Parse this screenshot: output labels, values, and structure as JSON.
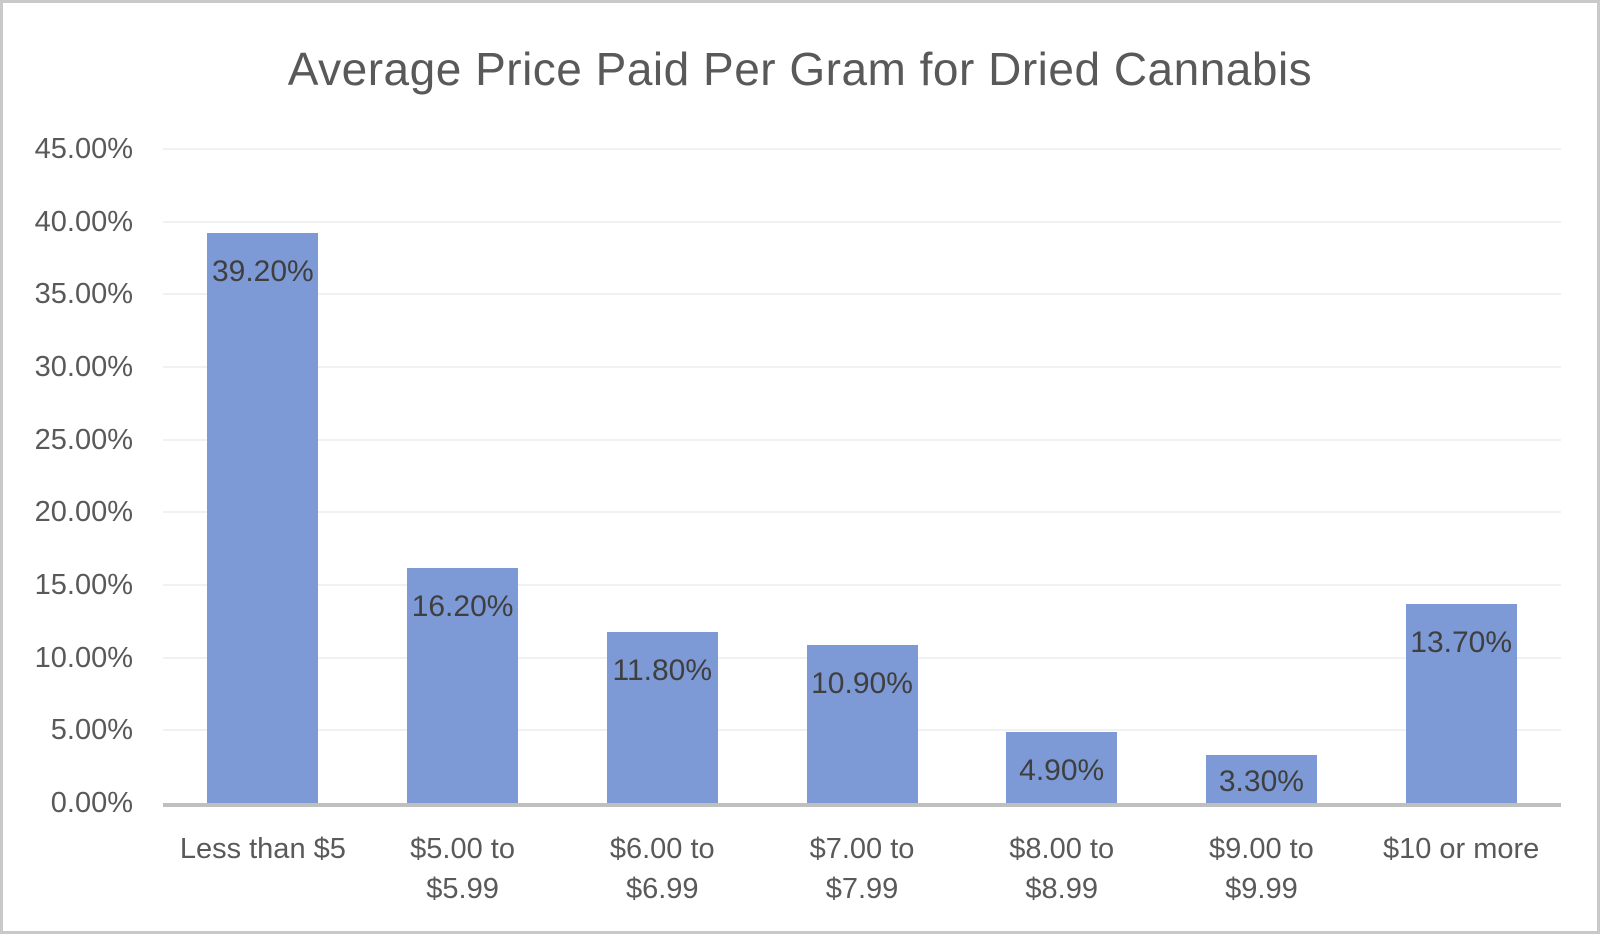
{
  "chart_data": {
    "type": "bar",
    "title": "Average Price Paid Per Gram for Dried Cannabis",
    "xlabel": "",
    "ylabel": "",
    "categories": [
      "Less than $5",
      "$5.00 to\n$5.99",
      "$6.00 to\n$6.99",
      "$7.00 to\n$7.99",
      "$8.00 to\n$8.99",
      "$9.00 to\n$9.99",
      "$10 or more"
    ],
    "values": [
      39.2,
      16.2,
      11.8,
      10.9,
      4.9,
      3.3,
      13.7
    ],
    "data_labels": [
      "39.20%",
      "16.20%",
      "11.80%",
      "10.90%",
      "4.90%",
      "3.30%",
      "13.70%"
    ],
    "ylim": [
      0,
      45
    ],
    "yticks": [
      {
        "value": 0,
        "label": "0.00%"
      },
      {
        "value": 5,
        "label": "5.00%"
      },
      {
        "value": 10,
        "label": "10.00%"
      },
      {
        "value": 15,
        "label": "15.00%"
      },
      {
        "value": 20,
        "label": "20.00%"
      },
      {
        "value": 25,
        "label": "25.00%"
      },
      {
        "value": 30,
        "label": "30.00%"
      },
      {
        "value": 35,
        "label": "35.00%"
      },
      {
        "value": 40,
        "label": "40.00%"
      },
      {
        "value": 45,
        "label": "45.00%"
      }
    ],
    "grid": true,
    "legend": false,
    "colors": {
      "bar_fill": "#7D9AD6",
      "title_text": "#595959",
      "axis_text": "#595959",
      "data_label_text": "#3F3F3F",
      "gridline": "#F1F1F1",
      "axis_line": "#BFBFBF",
      "frame_border": "#C9C9C9"
    }
  }
}
